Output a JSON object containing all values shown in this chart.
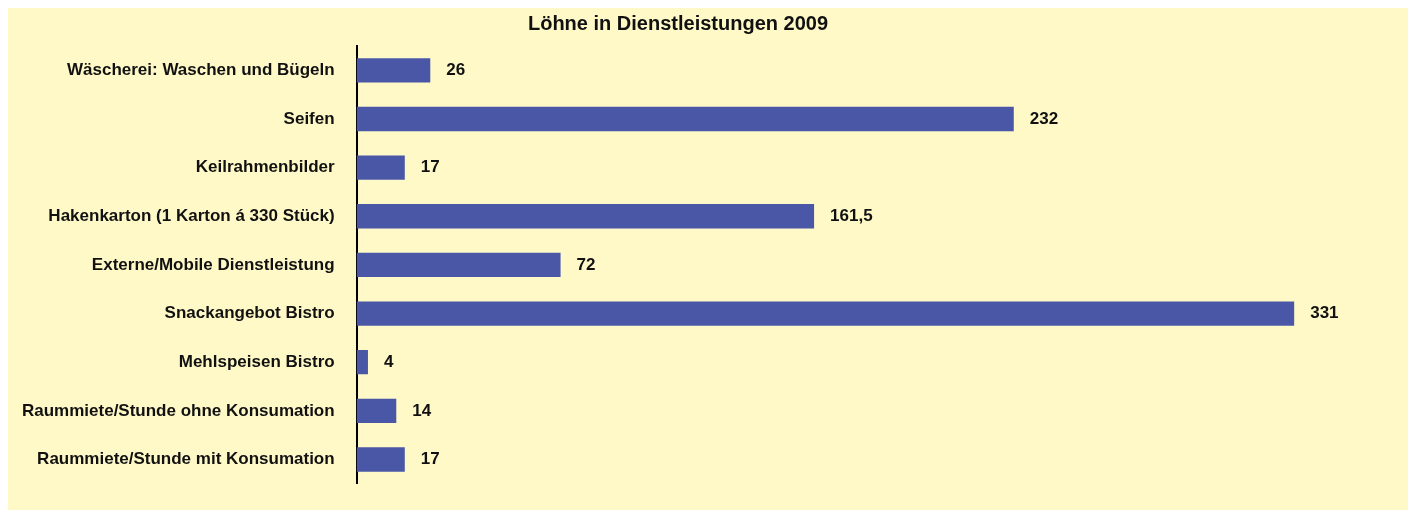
{
  "chart_data": {
    "type": "bar",
    "orientation": "horizontal",
    "title": "Löhne in Dienstleistungen 2009",
    "categories": [
      "Wäscherei: Waschen und Bügeln",
      "Seifen",
      "Keilrahmenbilder",
      "Hakenkarton (1 Karton á 330 Stück)",
      "Externe/Mobile Dienstleistung",
      "Snackangebot Bistro",
      "Mehlspeisen Bistro",
      "Raummiete/Stunde ohne Konsumation",
      "Raummiete/Stunde mit Konsumation"
    ],
    "values": [
      26,
      232,
      17,
      161.5,
      72,
      331,
      4,
      14,
      17
    ],
    "value_labels": [
      "26",
      "232",
      "17",
      "161,5",
      "72",
      "331",
      "4",
      "14",
      "17"
    ],
    "color": "#4a57a6",
    "grid": false,
    "legend": false
  }
}
